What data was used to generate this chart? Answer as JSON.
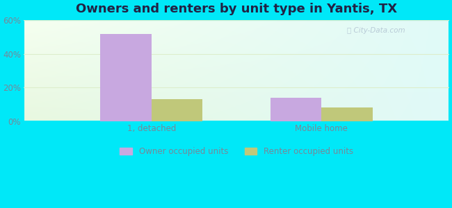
{
  "title": "Owners and renters by unit type in Yantis, TX",
  "categories": [
    "1, detached",
    "Mobile home"
  ],
  "owner_values": [
    52,
    14
  ],
  "renter_values": [
    13,
    8
  ],
  "owner_color": "#c8a8e0",
  "renter_color": "#c0c87a",
  "background_color": "#00e8f8",
  "ylim": [
    0,
    60
  ],
  "yticks": [
    0,
    20,
    40,
    60
  ],
  "ytick_labels": [
    "0%",
    "20%",
    "40%",
    "60%"
  ],
  "bar_width": 0.3,
  "title_fontsize": 13,
  "legend_labels": [
    "Owner occupied units",
    "Renter occupied units"
  ],
  "watermark": "City-Data.com",
  "title_color": "#222244",
  "tick_color": "#778899",
  "grid_color": "#ddeecc",
  "grad_top_color": "#f5fff0",
  "grad_right_color": "#e0faf8",
  "grad_bottom_left_color": "#e8f8e0"
}
